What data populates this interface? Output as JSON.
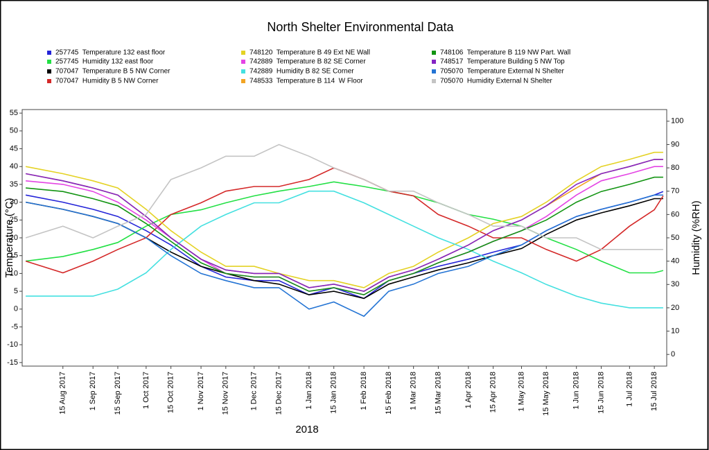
{
  "chart_data": {
    "type": "line",
    "title": "North Shelter Environmental Data",
    "x_label": "2018",
    "y_label": "Temperature (°C)",
    "y2_label": "Humidity (%RH)",
    "x": [
      "2017-07-25",
      "2017-08-15",
      "2017-09-01",
      "2017-09-15",
      "2017-10-01",
      "2017-10-15",
      "2017-11-01",
      "2017-11-15",
      "2017-12-01",
      "2017-12-15",
      "2018-01-01",
      "2018-01-15",
      "2018-02-01",
      "2018-02-15",
      "2018-03-01",
      "2018-03-15",
      "2018-04-01",
      "2018-04-15",
      "2018-05-01",
      "2018-05-15",
      "2018-06-01",
      "2018-06-15",
      "2018-07-01",
      "2018-07-15",
      "2018-07-20"
    ],
    "xlim": [
      "2017-07-23",
      "2018-07-22"
    ],
    "xticks": [
      {
        "value": "2017-08-15",
        "label": "15 Aug 2017"
      },
      {
        "value": "2017-09-01",
        "label": "1 Sep 2017"
      },
      {
        "value": "2017-09-15",
        "label": "15 Sep 2017"
      },
      {
        "value": "2017-10-01",
        "label": "1 Oct 2017"
      },
      {
        "value": "2017-10-15",
        "label": "15 Oct 2017"
      },
      {
        "value": "2017-11-01",
        "label": "1 Nov 2017"
      },
      {
        "value": "2017-11-15",
        "label": "15 Nov 2017"
      },
      {
        "value": "2017-12-01",
        "label": "1 Dec 2017"
      },
      {
        "value": "2017-12-15",
        "label": "15 Dec 2017"
      },
      {
        "value": "2018-01-01",
        "label": "1 Jan 2018"
      },
      {
        "value": "2018-01-15",
        "label": "15 Jan 2018"
      },
      {
        "value": "2018-02-01",
        "label": "1 Feb 2018"
      },
      {
        "value": "2018-02-15",
        "label": "15 Feb 2018"
      },
      {
        "value": "2018-03-01",
        "label": "1 Mar 2018"
      },
      {
        "value": "2018-03-15",
        "label": "15 Mar 2018"
      },
      {
        "value": "2018-04-01",
        "label": "1 Apr 2018"
      },
      {
        "value": "2018-04-15",
        "label": "15 Apr 2018"
      },
      {
        "value": "2018-05-01",
        "label": "1 May 2018"
      },
      {
        "value": "2018-05-15",
        "label": "15 May 2018"
      },
      {
        "value": "2018-06-01",
        "label": "1 Jun 2018"
      },
      {
        "value": "2018-06-15",
        "label": "15 Jun 2018"
      },
      {
        "value": "2018-07-01",
        "label": "1 Jul 2018"
      },
      {
        "value": "2018-07-15",
        "label": "15 Jul 2018"
      }
    ],
    "ylim": [
      -16,
      56
    ],
    "yticks": [
      -15,
      -10,
      -5,
      0,
      5,
      10,
      15,
      20,
      25,
      30,
      35,
      40,
      45,
      50,
      55
    ],
    "y2lim": [
      -5,
      105
    ],
    "y2ticks": [
      0,
      10,
      20,
      30,
      40,
      50,
      60,
      70,
      80,
      90,
      100
    ],
    "series": [
      {
        "name": "257745  Temperature 132 east floor",
        "color": "#2424d8",
        "values": [
          32,
          30,
          28,
          26,
          22,
          18,
          12,
          9,
          8,
          8,
          4,
          6,
          3,
          8,
          10,
          12,
          14,
          16,
          18,
          22,
          26,
          28,
          30,
          32,
          33
        ]
      },
      {
        "name": "257745  Humidity 132 east floor",
        "color": "#22e044",
        "axis": "y2",
        "values": [
          40,
          42,
          45,
          48,
          55,
          60,
          62,
          65,
          68,
          70,
          72,
          74,
          72,
          70,
          68,
          65,
          60,
          58,
          55,
          50,
          45,
          40,
          35,
          35,
          36
        ]
      },
      {
        "name": "707047  Temperature B 5 NW Corner",
        "color": "#000000",
        "values": [
          30,
          28,
          26,
          24,
          20,
          16,
          12,
          10,
          8,
          7,
          4,
          5,
          3,
          7,
          9,
          11,
          13,
          15,
          17,
          21,
          25,
          27,
          29,
          31,
          31
        ]
      },
      {
        "name": "707047  Humidity B 5 NW Corner",
        "color": "#d42828",
        "axis": "y2",
        "values": [
          40,
          35,
          40,
          45,
          50,
          60,
          65,
          70,
          72,
          72,
          75,
          80,
          75,
          70,
          68,
          60,
          55,
          50,
          50,
          45,
          40,
          45,
          55,
          62,
          68
        ]
      },
      {
        "name": "748120  Temperature B 49 Ext NE Wall",
        "color": "#e4d224",
        "values": [
          40,
          38,
          36,
          34,
          28,
          22,
          16,
          12,
          12,
          10,
          8,
          8,
          6,
          10,
          12,
          16,
          20,
          24,
          26,
          30,
          36,
          40,
          42,
          44,
          44
        ]
      },
      {
        "name": "742889  Temperature B 82 SE Corner",
        "color": "#e444e4",
        "values": [
          36,
          35,
          33,
          30,
          25,
          20,
          14,
          10,
          9,
          9,
          5,
          6,
          4,
          8,
          10,
          13,
          16,
          19,
          22,
          26,
          32,
          36,
          38,
          40,
          40
        ]
      },
      {
        "name": "742889  Humidity B 82 SE Corner",
        "color": "#44e0e0",
        "axis": "y2",
        "values": [
          25,
          25,
          25,
          28,
          35,
          45,
          55,
          60,
          65,
          65,
          70,
          70,
          65,
          60,
          55,
          50,
          45,
          40,
          35,
          30,
          25,
          22,
          20,
          20,
          20
        ]
      },
      {
        "name": "748533  Temperature B 114  W Floor",
        "color": "#f2a424",
        "values": [
          38,
          36,
          34,
          32,
          26,
          20,
          14,
          11,
          10,
          10,
          6,
          7,
          5,
          9,
          11,
          14,
          18,
          22,
          25,
          29,
          34,
          38,
          40,
          42,
          42
        ]
      },
      {
        "name": "748106  Temperature B 119 NW Part. Wall",
        "color": "#129412",
        "values": [
          34,
          33,
          31,
          29,
          24,
          19,
          13,
          10,
          9,
          9,
          5,
          6,
          4,
          8,
          10,
          13,
          16,
          19,
          22,
          25,
          30,
          33,
          35,
          37,
          37
        ]
      },
      {
        "name": "748517  Temperature Building 5 NW Top",
        "color": "#8424c4",
        "values": [
          38,
          36,
          34,
          32,
          26,
          20,
          14,
          11,
          10,
          10,
          6,
          7,
          5,
          9,
          11,
          14,
          18,
          22,
          25,
          29,
          35,
          38,
          40,
          42,
          42
        ]
      },
      {
        "name": "705070  Temperature External N Shelter",
        "color": "#2474d4",
        "values": [
          30,
          28,
          26,
          24,
          20,
          15,
          10,
          8,
          6,
          6,
          0,
          2,
          -2,
          5,
          7,
          10,
          12,
          15,
          18,
          22,
          26,
          28,
          30,
          32,
          32
        ]
      },
      {
        "name": "705070  Humidity External N Shelter",
        "color": "#c4c4c4",
        "axis": "y2",
        "values": [
          50,
          55,
          50,
          55,
          60,
          75,
          80,
          85,
          85,
          90,
          85,
          80,
          75,
          70,
          70,
          65,
          60,
          55,
          55,
          50,
          50,
          45,
          45,
          45,
          45
        ]
      }
    ]
  }
}
